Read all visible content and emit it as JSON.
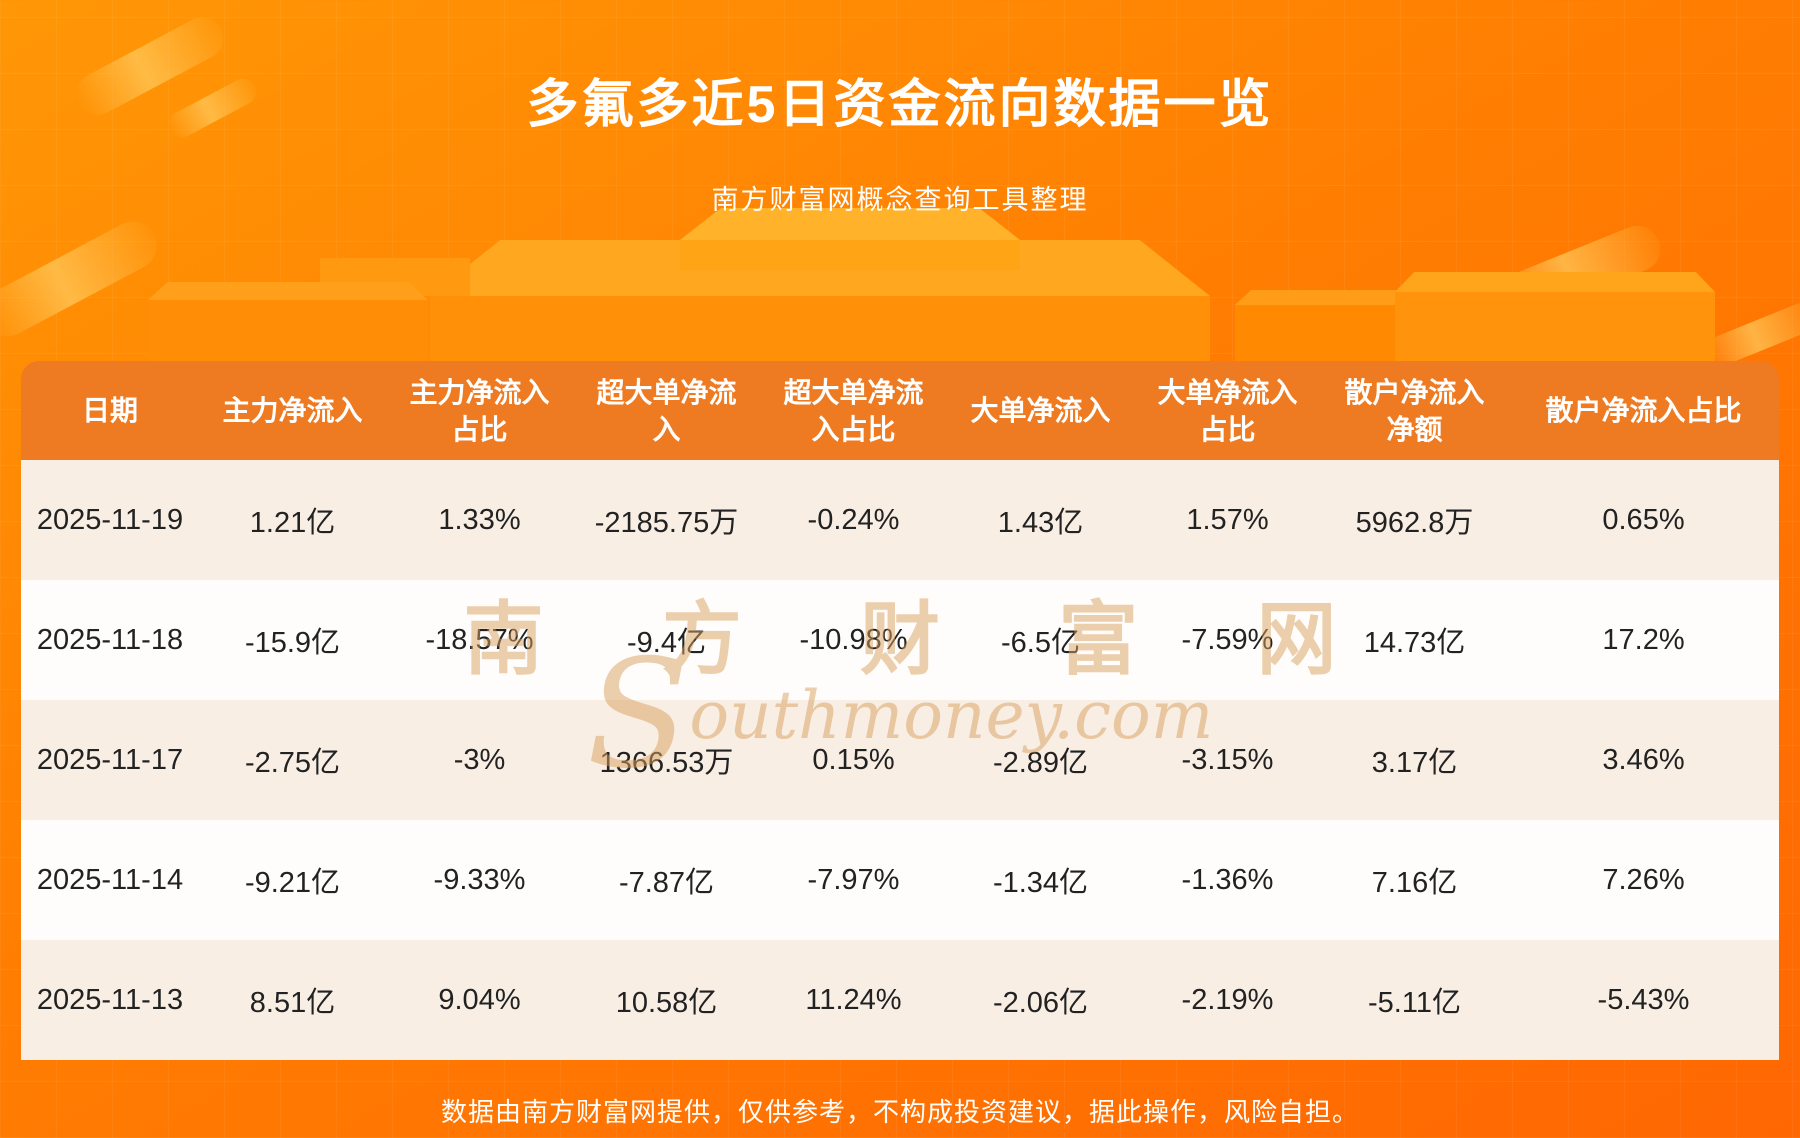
{
  "header": {
    "title": "多氟多近5日资金流向数据一览",
    "subtitle": "南方财富网概念查询工具整理"
  },
  "table": {
    "columns": [
      "日期",
      "主力净流入",
      "主力净流入占比",
      "超大单净流入",
      "超大单净流入占比",
      "大单净流入",
      "大单净流入占比",
      "散户净流入净额",
      "散户净流入占比"
    ],
    "rows": [
      [
        "2025-11-19",
        "1.21亿",
        "1.33%",
        "-2185.75万",
        "-0.24%",
        "1.43亿",
        "1.57%",
        "5962.8万",
        "0.65%"
      ],
      [
        "2025-11-18",
        "-15.9亿",
        "-18.57%",
        "-9.4亿",
        "-10.98%",
        "-6.5亿",
        "-7.59%",
        "14.73亿",
        "17.2%"
      ],
      [
        "2025-11-17",
        "-2.75亿",
        "-3%",
        "1366.53万",
        "0.15%",
        "-2.89亿",
        "-3.15%",
        "3.17亿",
        "3.46%"
      ],
      [
        "2025-11-14",
        "-9.21亿",
        "-9.33%",
        "-7.87亿",
        "-7.97%",
        "-1.34亿",
        "-1.36%",
        "7.16亿",
        "7.26%"
      ],
      [
        "2025-11-13",
        "8.51亿",
        "9.04%",
        "10.58亿",
        "11.24%",
        "-2.06亿",
        "-2.19%",
        "-5.11亿",
        "-5.43%"
      ]
    ]
  },
  "watermark": {
    "cn": "南 方 财 富 网",
    "en_initial": "S",
    "en_rest": "outhmoney.com"
  },
  "footer": {
    "disclaimer": "数据由南方财富网提供，仅供参考，不构成投资建议，据此操作，风险自担。"
  },
  "colors": {
    "page_bg_top": "#ff9706",
    "page_bg_bottom": "#ff6702",
    "table_header_bg": "#ee7a21",
    "row_tint": "#f8eee4",
    "row_white": "#fffdfb",
    "title_text": "#ffffff",
    "body_text": "#222222",
    "watermark": "#d9a05e"
  },
  "chart_data": {
    "type": "table",
    "title": "多氟多近5日资金流向数据一览",
    "subtitle": "南方财富网概念查询工具整理",
    "columns": [
      "日期",
      "主力净流入",
      "主力净流入占比",
      "超大单净流入",
      "超大单净流入占比",
      "大单净流入",
      "大单净流入占比",
      "散户净流入净额",
      "散户净流入占比"
    ],
    "rows": [
      [
        "2025-11-19",
        "1.21亿",
        "1.33%",
        "-2185.75万",
        "-0.24%",
        "1.43亿",
        "1.57%",
        "5962.8万",
        "0.65%"
      ],
      [
        "2025-11-18",
        "-15.9亿",
        "-18.57%",
        "-9.4亿",
        "-10.98%",
        "-6.5亿",
        "-7.59%",
        "14.73亿",
        "17.2%"
      ],
      [
        "2025-11-17",
        "-2.75亿",
        "-3%",
        "1366.53万",
        "0.15%",
        "-2.89亿",
        "-3.15%",
        "3.17亿",
        "3.46%"
      ],
      [
        "2025-11-14",
        "-9.21亿",
        "-9.33%",
        "-7.87亿",
        "-7.97%",
        "-1.34亿",
        "-1.36%",
        "7.16亿",
        "7.26%"
      ],
      [
        "2025-11-13",
        "8.51亿",
        "9.04%",
        "10.58亿",
        "11.24%",
        "-2.06亿",
        "-2.19%",
        "-5.11亿",
        "-5.43%"
      ]
    ],
    "footnote": "数据由南方财富网提供，仅供参考，不构成投资建议，据此操作，风险自担。"
  }
}
